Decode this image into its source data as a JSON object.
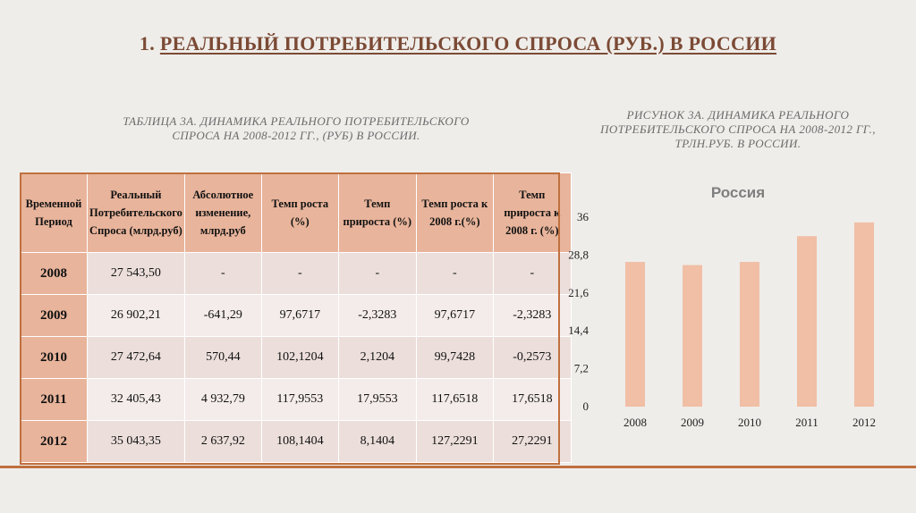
{
  "slide": {
    "title_number": "1.",
    "title_text": "РЕАЛЬНЫЙ ПОТРЕБИТЕЛЬСКОГО СПРОСА (РУБ.) В РОССИИ"
  },
  "table_caption_line1": "Таблица 3а. Динамика реального потребительского",
  "table_caption_line2": "спроса на 2008-2012 гг., (руб) в России.",
  "figure_caption_line1": "Рисунок 3а. Динамика реального",
  "figure_caption_line2": "потребительского спроса на 2008-2012 гг.,",
  "figure_caption_line3": "трлн.руб. в России.",
  "table": {
    "headers": [
      "Временной Период",
      "Реальный Потребительского Спроса (млрд.руб)",
      "Абсолютное изменение, млрд.руб",
      "Темп роста (%)",
      "Темп прироста (%)",
      "Темп роста к 2008 г.(%)",
      "Темп прироста к 2008 г. (%)"
    ],
    "rows": [
      [
        "2008",
        "27 543,50",
        "-",
        "-",
        "-",
        "-",
        "-"
      ],
      [
        "2009",
        "26 902,21",
        "-641,29",
        "97,6717",
        "-2,3283",
        "97,6717",
        "-2,3283"
      ],
      [
        "2010",
        "27 472,64",
        "570,44",
        "102,1204",
        "2,1204",
        "99,7428",
        "-0,2573"
      ],
      [
        "2011",
        "32 405,43",
        "4 932,79",
        "117,9553",
        "17,9553",
        "117,6518",
        "17,6518"
      ],
      [
        "2012",
        "35 043,35",
        "2 637,92",
        "108,1404",
        "8,1404",
        "127,2291",
        "27,2291"
      ]
    ]
  },
  "chart_data": {
    "type": "bar",
    "title": "Россия",
    "categories": [
      "2008",
      "2009",
      "2010",
      "2011",
      "2012"
    ],
    "values": [
      27.5,
      26.9,
      27.5,
      32.4,
      35.0
    ],
    "ylim": [
      0,
      36
    ],
    "yticks": [
      "0",
      "7,2",
      "14,4",
      "21,6",
      "28,8",
      "36"
    ],
    "ytick_values": [
      0,
      7.2,
      14.4,
      21.6,
      28.8,
      36
    ],
    "grid": false,
    "bar_color": "#f0bfa6"
  }
}
